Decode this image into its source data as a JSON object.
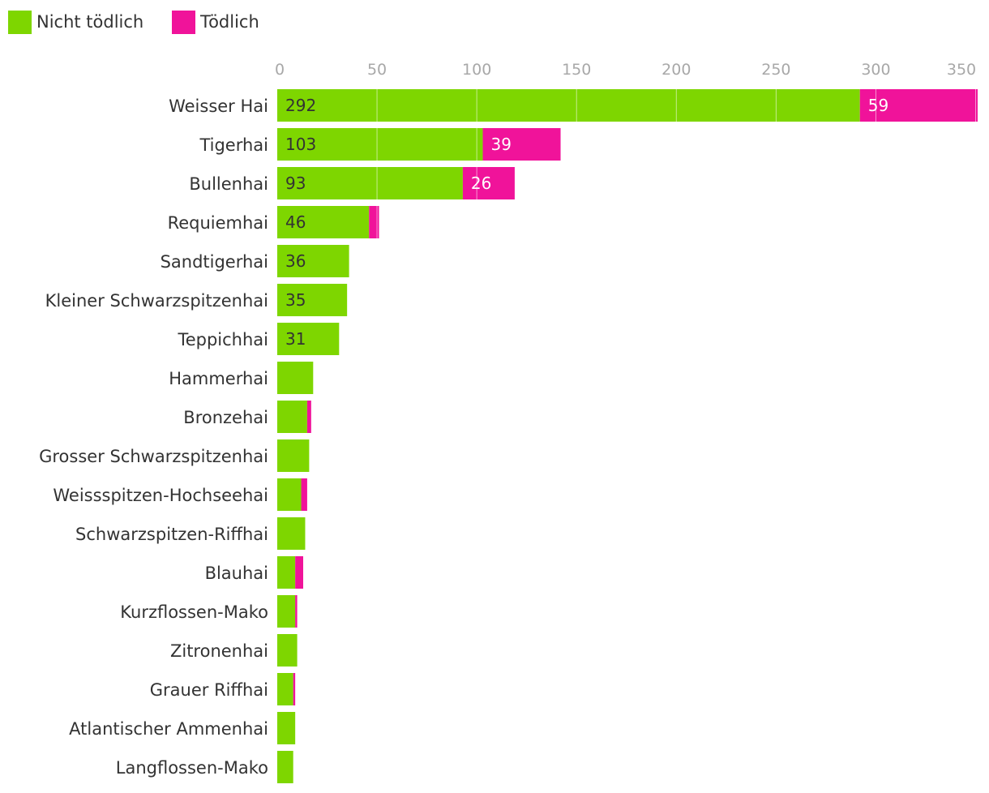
{
  "chart_data": {
    "type": "bar",
    "orientation": "horizontal",
    "stacked": true,
    "grid": true,
    "legend_position": "top-left",
    "categories": [
      "Weisser Hai",
      "Tigerhai",
      "Bullenhai",
      "Requiemhai",
      "Sandtigerhai",
      "Kleiner Schwarzspitzenhai",
      "Teppichhai",
      "Hammerhai",
      "Bronzehai",
      "Grosser Schwarzspitzenhai",
      "Weissspitzen-Hochseehai",
      "Schwarzspitzen-Riffhai",
      "Blauhai",
      "Kurzflossen-Mako",
      "Zitronenhai",
      "Grauer Riffhai",
      "Atlantischer Ammenhai",
      "Langflossen-Mako"
    ],
    "series": [
      {
        "name": "Nicht tödlich",
        "color": "#7ed600",
        "values": [
          292,
          103,
          93,
          46,
          36,
          35,
          31,
          18,
          15,
          16,
          12,
          14,
          9,
          9,
          10,
          8,
          9,
          8
        ],
        "labels": [
          "292",
          "103",
          "93",
          "46",
          "36",
          "35",
          "31",
          "",
          "",
          "",
          "",
          "",
          "",
          "",
          "",
          "",
          "",
          ""
        ],
        "label_color": "#333333"
      },
      {
        "name": "Tödlich",
        "color": "#f0139a",
        "values": [
          59,
          39,
          26,
          5,
          0,
          0,
          0,
          0,
          2,
          0,
          3,
          0,
          4,
          1,
          0,
          1,
          0,
          0
        ],
        "labels": [
          "59",
          "39",
          "26",
          "",
          "",
          "",
          "",
          "",
          "",
          "",
          "",
          "",
          "",
          "",
          "",
          "",
          "",
          ""
        ],
        "label_color": "#ffffff"
      }
    ],
    "xlim": [
      0,
      352
    ],
    "x_ticks": [
      0,
      50,
      100,
      150,
      200,
      250,
      300,
      350
    ],
    "x_tick_labels": [
      "0",
      "50",
      "100",
      "150",
      "200",
      "250",
      "300",
      "350"
    ],
    "x_axis_position": "top",
    "title": "",
    "xlabel": "",
    "ylabel": ""
  }
}
